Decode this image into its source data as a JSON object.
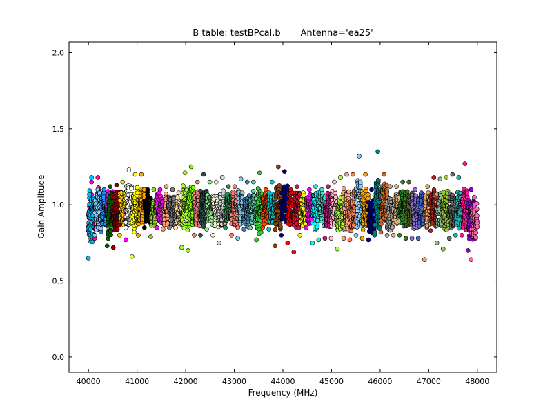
{
  "chart_data": {
    "type": "scatter",
    "title": "B table: testBPcal.b       Antenna='ea25'",
    "xlabel": "Frequency (MHz)",
    "ylabel": "Gain Amplitude",
    "xlim": [
      39600,
      48400
    ],
    "ylim": [
      -0.1,
      2.07
    ],
    "xticks": [
      40000,
      41000,
      42000,
      43000,
      44000,
      45000,
      46000,
      47000,
      48000
    ],
    "yticks": [
      0.0,
      0.5,
      1.0,
      1.5,
      2.0
    ],
    "xtick_labels": [
      "40000",
      "41000",
      "42000",
      "43000",
      "44000",
      "45000",
      "46000",
      "47000",
      "48000"
    ],
    "ytick_labels": [
      "0.0",
      "0.5",
      "1.0",
      "1.5",
      "2.0"
    ],
    "grid": false,
    "legend": "none",
    "marker": "circle",
    "marker_edge_color": "#000000",
    "spw_width_mhz": 128,
    "channels_per_spw": 64,
    "series": [
      {
        "start_mhz": 40000,
        "color": "#ff00ff",
        "center": 0.97,
        "spread": 0.12,
        "min": 0.83,
        "max": 1.15
      },
      {
        "start_mhz": 40000,
        "color": "#00bfff",
        "center": 0.92,
        "spread": 0.18,
        "min": 0.65,
        "max": 1.18
      },
      {
        "start_mhz": 40128,
        "color": "#ff1493",
        "center": 0.97,
        "spread": 0.15,
        "min": 0.78,
        "max": 1.18
      },
      {
        "start_mhz": 40128,
        "color": "#87cefa",
        "center": 0.95,
        "spread": 0.14,
        "min": 0.8,
        "max": 1.1
      },
      {
        "start_mhz": 40256,
        "color": "#1e90ff",
        "center": 0.97,
        "spread": 0.12,
        "min": 0.82,
        "max": 1.1
      },
      {
        "start_mhz": 40384,
        "color": "#ff00ff",
        "center": 0.97,
        "spread": 0.12,
        "min": 0.86,
        "max": 1.12
      },
      {
        "start_mhz": 40384,
        "color": "#006400",
        "center": 0.93,
        "spread": 0.15,
        "min": 0.73,
        "max": 1.12
      },
      {
        "start_mhz": 40512,
        "color": "#8b0000",
        "center": 0.95,
        "spread": 0.14,
        "min": 0.72,
        "max": 1.13
      },
      {
        "start_mhz": 40640,
        "color": "#ffd700",
        "center": 0.98,
        "spread": 0.12,
        "min": 0.8,
        "max": 1.15
      },
      {
        "start_mhz": 40768,
        "color": "#ff00ff",
        "center": 0.95,
        "spread": 0.1,
        "min": 0.77,
        "max": 1.05
      },
      {
        "start_mhz": 40768,
        "color": "#ffffff",
        "center": 1.0,
        "spread": 0.14,
        "min": 0.85,
        "max": 1.23
      },
      {
        "start_mhz": 40896,
        "color": "#ffff00",
        "center": 0.97,
        "spread": 0.14,
        "min": 0.66,
        "max": 1.2
      },
      {
        "start_mhz": 41024,
        "color": "#ffa500",
        "center": 0.98,
        "spread": 0.12,
        "min": 0.8,
        "max": 1.2
      },
      {
        "start_mhz": 41152,
        "color": "#000000",
        "center": 0.98,
        "spread": 0.1,
        "min": 0.85,
        "max": 1.1
      },
      {
        "start_mhz": 41280,
        "color": "#9acd32",
        "center": 0.95,
        "spread": 0.09,
        "min": 0.79,
        "max": 1.1
      },
      {
        "start_mhz": 41408,
        "color": "#ff00ff",
        "center": 0.98,
        "spread": 0.1,
        "min": 0.85,
        "max": 1.1
      },
      {
        "start_mhz": 41536,
        "color": "#ffa07a",
        "center": 0.97,
        "spread": 0.1,
        "min": 0.84,
        "max": 1.12
      },
      {
        "start_mhz": 41664,
        "color": "#808080",
        "center": 0.96,
        "spread": 0.1,
        "min": 0.85,
        "max": 1.1
      },
      {
        "start_mhz": 41792,
        "color": "#ffdead",
        "center": 0.96,
        "spread": 0.09,
        "min": 0.85,
        "max": 1.08
      },
      {
        "start_mhz": 41920,
        "color": "#adff2f",
        "center": 0.98,
        "spread": 0.14,
        "min": 0.72,
        "max": 1.21
      },
      {
        "start_mhz": 42048,
        "color": "#7fff00",
        "center": 0.98,
        "spread": 0.15,
        "min": 0.7,
        "max": 1.25
      },
      {
        "start_mhz": 42176,
        "color": "#f08080",
        "center": 0.97,
        "spread": 0.12,
        "min": 0.8,
        "max": 1.15
      },
      {
        "start_mhz": 42304,
        "color": "#2f4f4f",
        "center": 0.98,
        "spread": 0.12,
        "min": 0.8,
        "max": 1.2
      },
      {
        "start_mhz": 42432,
        "color": "#90ee90",
        "center": 0.97,
        "spread": 0.1,
        "min": 0.84,
        "max": 1.15
      },
      {
        "start_mhz": 42560,
        "color": "#f5f5dc",
        "center": 0.96,
        "spread": 0.11,
        "min": 0.8,
        "max": 1.15
      },
      {
        "start_mhz": 42688,
        "color": "#d3d3d3",
        "center": 0.97,
        "spread": 0.12,
        "min": 0.75,
        "max": 1.18
      },
      {
        "start_mhz": 42816,
        "color": "#2e8b57",
        "center": 0.98,
        "spread": 0.1,
        "min": 0.85,
        "max": 1.12
      },
      {
        "start_mhz": 42944,
        "color": "#fa8072",
        "center": 0.96,
        "spread": 0.12,
        "min": 0.8,
        "max": 1.12
      },
      {
        "start_mhz": 43072,
        "color": "#87ceeb",
        "center": 0.98,
        "spread": 0.12,
        "min": 0.78,
        "max": 1.17
      },
      {
        "start_mhz": 43200,
        "color": "#4682b4",
        "center": 0.96,
        "spread": 0.1,
        "min": 0.84,
        "max": 1.15
      },
      {
        "start_mhz": 43328,
        "color": "#66cdaa",
        "center": 0.98,
        "spread": 0.12,
        "min": 0.85,
        "max": 1.15
      },
      {
        "start_mhz": 43456,
        "color": "#32cd32",
        "center": 0.96,
        "spread": 0.14,
        "min": 0.77,
        "max": 1.21
      },
      {
        "start_mhz": 43584,
        "color": "#ff4500",
        "center": 0.97,
        "spread": 0.1,
        "min": 0.85,
        "max": 1.1
      },
      {
        "start_mhz": 43712,
        "color": "#00ced1",
        "center": 0.98,
        "spread": 0.1,
        "min": 0.84,
        "max": 1.15
      },
      {
        "start_mhz": 43840,
        "color": "#8b4513",
        "center": 0.98,
        "spread": 0.16,
        "min": 0.73,
        "max": 1.25
      },
      {
        "start_mhz": 43968,
        "color": "#00008b",
        "center": 1.0,
        "spread": 0.12,
        "min": 0.8,
        "max": 1.22
      },
      {
        "start_mhz": 44096,
        "color": "#ff0000",
        "center": 0.96,
        "spread": 0.12,
        "min": 0.75,
        "max": 1.1
      },
      {
        "start_mhz": 44224,
        "color": "#dc143c",
        "center": 0.97,
        "spread": 0.12,
        "min": 0.69,
        "max": 1.12
      },
      {
        "start_mhz": 44352,
        "color": "#ffff00",
        "center": 0.96,
        "spread": 0.1,
        "min": 0.8,
        "max": 1.08
      },
      {
        "start_mhz": 44480,
        "color": "#ff00ff",
        "center": 0.97,
        "spread": 0.1,
        "min": 0.85,
        "max": 1.1
      },
      {
        "start_mhz": 44608,
        "color": "#00ffff",
        "center": 0.96,
        "spread": 0.13,
        "min": 0.75,
        "max": 1.12
      },
      {
        "start_mhz": 44736,
        "color": "#40e0d0",
        "center": 0.97,
        "spread": 0.12,
        "min": 0.77,
        "max": 1.1
      },
      {
        "start_mhz": 44864,
        "color": "#c71585",
        "center": 0.96,
        "spread": 0.12,
        "min": 0.78,
        "max": 1.12
      },
      {
        "start_mhz": 44992,
        "color": "#ffc0cb",
        "center": 0.98,
        "spread": 0.12,
        "min": 0.78,
        "max": 1.15
      },
      {
        "start_mhz": 45120,
        "color": "#adff2f",
        "center": 0.96,
        "spread": 0.13,
        "min": 0.71,
        "max": 1.18
      },
      {
        "start_mhz": 45248,
        "color": "#ffa07a",
        "center": 0.97,
        "spread": 0.14,
        "min": 0.78,
        "max": 1.2
      },
      {
        "start_mhz": 45376,
        "color": "#ff7f50",
        "center": 0.96,
        "spread": 0.14,
        "min": 0.77,
        "max": 1.2
      },
      {
        "start_mhz": 45504,
        "color": "#87cefa",
        "center": 1.03,
        "spread": 0.18,
        "min": 0.8,
        "max": 1.32
      },
      {
        "start_mhz": 45632,
        "color": "#ffa500",
        "center": 0.98,
        "spread": 0.14,
        "min": 0.78,
        "max": 1.2
      },
      {
        "start_mhz": 45760,
        "color": "#00008b",
        "center": 0.92,
        "spread": 0.12,
        "min": 0.77,
        "max": 1.1
      },
      {
        "start_mhz": 45888,
        "color": "#008080",
        "center": 1.0,
        "spread": 0.18,
        "min": 0.8,
        "max": 1.35
      },
      {
        "start_mhz": 46016,
        "color": "#d2691e",
        "center": 0.99,
        "spread": 0.14,
        "min": 0.82,
        "max": 1.2
      },
      {
        "start_mhz": 46144,
        "color": "#a9a9a9",
        "center": 0.95,
        "spread": 0.12,
        "min": 0.8,
        "max": 1.12
      },
      {
        "start_mhz": 46272,
        "color": "#deb887",
        "center": 0.97,
        "spread": 0.11,
        "min": 0.8,
        "max": 1.12
      },
      {
        "start_mhz": 46400,
        "color": "#228b22",
        "center": 0.98,
        "spread": 0.12,
        "min": 0.8,
        "max": 1.15
      },
      {
        "start_mhz": 46528,
        "color": "#556b2f",
        "center": 0.97,
        "spread": 0.12,
        "min": 0.78,
        "max": 1.15
      },
      {
        "start_mhz": 46656,
        "color": "#9370db",
        "center": 0.96,
        "spread": 0.12,
        "min": 0.78,
        "max": 1.1
      },
      {
        "start_mhz": 46784,
        "color": "#4169e1",
        "center": 0.95,
        "spread": 0.12,
        "min": 0.78,
        "max": 1.08
      },
      {
        "start_mhz": 46912,
        "color": "#f4a460",
        "center": 0.96,
        "spread": 0.12,
        "min": 0.64,
        "max": 1.12
      },
      {
        "start_mhz": 47040,
        "color": "#b22222",
        "center": 0.98,
        "spread": 0.12,
        "min": 0.83,
        "max": 1.18
      },
      {
        "start_mhz": 47168,
        "color": "#8fbc8f",
        "center": 0.97,
        "spread": 0.12,
        "min": 0.75,
        "max": 1.17
      },
      {
        "start_mhz": 47296,
        "color": "#9acd32",
        "center": 0.97,
        "spread": 0.13,
        "min": 0.71,
        "max": 1.18
      },
      {
        "start_mhz": 47424,
        "color": "#696969",
        "center": 0.96,
        "spread": 0.12,
        "min": 0.78,
        "max": 1.2
      },
      {
        "start_mhz": 47552,
        "color": "#20b2aa",
        "center": 0.97,
        "spread": 0.12,
        "min": 0.8,
        "max": 1.18
      },
      {
        "start_mhz": 47680,
        "color": "#ff1493",
        "center": 0.98,
        "spread": 0.14,
        "min": 0.8,
        "max": 1.27
      },
      {
        "start_mhz": 47808,
        "color": "#9400d3",
        "center": 0.9,
        "spread": 0.14,
        "min": 0.7,
        "max": 1.1
      },
      {
        "start_mhz": 47872,
        "color": "#ff69b4",
        "center": 0.88,
        "spread": 0.12,
        "min": 0.64,
        "max": 1.05
      }
    ]
  }
}
